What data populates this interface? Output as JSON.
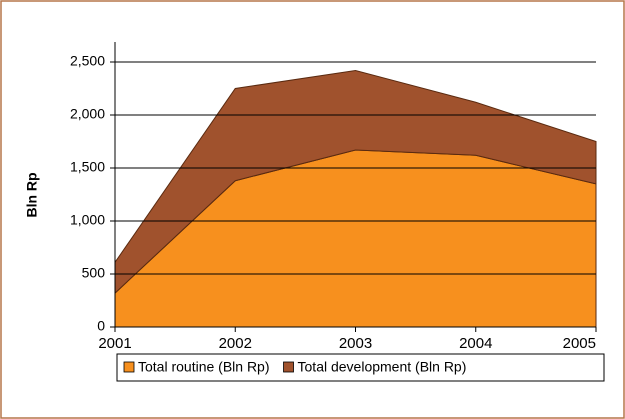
{
  "chart_data": {
    "type": "stacked_area",
    "y_label": "Bln Rp",
    "categories": [
      "2001",
      "2002",
      "2003",
      "2004",
      "2005"
    ],
    "series": [
      {
        "name": "Total routine (Bln Rp)",
        "color": "#f7901e",
        "values": [
          320,
          1380,
          1670,
          1620,
          1350
        ]
      },
      {
        "name": "Total development (Bln Rp)",
        "color": "#a0522d",
        "values": [
          290,
          870,
          750,
          500,
          400
        ]
      }
    ],
    "ylim": [
      0,
      2500
    ],
    "yticks": [
      0,
      500,
      {
        "value": 1000,
        "label": "1,000"
      },
      {
        "value": 1500,
        "label": "1,500"
      },
      {
        "value": 2000,
        "label": "2,000"
      },
      {
        "value": 2500,
        "label": "2,500"
      }
    ],
    "grid": true,
    "legend": "bottom"
  }
}
